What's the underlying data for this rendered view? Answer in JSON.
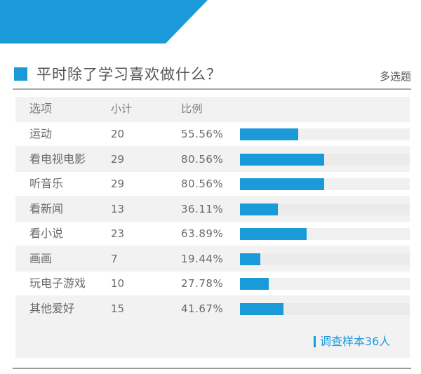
{
  "header": {
    "title": "平时除了学习喜欢做什么？",
    "tag": "多选题"
  },
  "table": {
    "col_option": "选项",
    "col_count": "小计",
    "col_ratio": "比例"
  },
  "footer": {
    "sample": "调查样本36人"
  },
  "colors": {
    "accent": "#1a9ad9",
    "panel": "#f2f2f2"
  },
  "chart_data": {
    "type": "bar",
    "orientation": "horizontal",
    "categories": [
      "运动",
      "看电视电影",
      "听音乐",
      "看新闻",
      "看小说",
      "画画",
      "玩电子游戏",
      "其他爱好"
    ],
    "counts": [
      "20",
      "29",
      "29",
      "13",
      "23",
      "7",
      "10",
      "15"
    ],
    "ratio_labels": [
      "55.56%",
      "80.56%",
      "80.56%",
      "36.11%",
      "63.89%",
      "19.44%",
      "27.78%",
      "41.67%"
    ],
    "values": [
      55.56,
      80.56,
      80.56,
      36.11,
      63.89,
      19.44,
      27.78,
      41.67
    ],
    "xlim": [
      0,
      162
    ]
  }
}
